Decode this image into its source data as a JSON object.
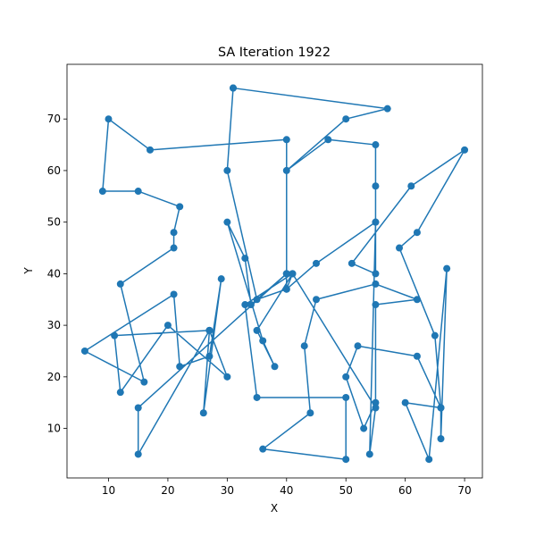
{
  "chart_data": {
    "type": "line",
    "title": "SA Iteration 1922",
    "xlabel": "X",
    "ylabel": "Y",
    "xlim": [
      3,
      73
    ],
    "ylim": [
      0.4,
      80.6
    ],
    "x_ticks": [
      10,
      20,
      30,
      40,
      50,
      60,
      70
    ],
    "y_ticks": [
      10,
      20,
      30,
      40,
      50,
      60,
      70
    ],
    "grid": false,
    "legend": "none",
    "line_color": "#1f77b4",
    "marker": "circle",
    "series": [
      {
        "x": [
          31,
          57,
          50,
          40,
          47,
          55,
          55,
          55,
          55,
          51,
          61,
          70,
          62,
          59,
          65,
          66,
          66,
          67,
          64,
          60,
          66,
          62,
          52,
          50,
          53,
          55,
          55,
          62,
          55,
          45,
          43,
          44,
          36,
          50,
          50,
          35,
          33,
          41,
          40,
          45,
          55,
          54,
          55,
          41,
          35,
          38,
          36,
          30,
          33,
          34,
          40,
          15,
          15,
          27,
          30,
          20,
          12,
          11,
          27,
          26,
          29,
          27,
          22,
          21,
          6,
          16,
          12,
          21,
          21,
          22,
          15,
          9,
          10,
          17,
          40,
          40,
          40,
          35,
          30,
          31
        ],
        "y": [
          76,
          72,
          70,
          60,
          66,
          65,
          57,
          50,
          40,
          42,
          57,
          64,
          48,
          45,
          28,
          14,
          8,
          41,
          4,
          15,
          14,
          24,
          26,
          20,
          10,
          15,
          34,
          35,
          38,
          35,
          26,
          13,
          6,
          4,
          16,
          16,
          34,
          40,
          37,
          42,
          50,
          5,
          14,
          40,
          29,
          22,
          27,
          50,
          43,
          34,
          40,
          14,
          5,
          29,
          20,
          30,
          17,
          28,
          29,
          13,
          39,
          24,
          22,
          36,
          25,
          19,
          38,
          45,
          48,
          53,
          56,
          56,
          70,
          64,
          66,
          40,
          37,
          35,
          60,
          76
        ]
      }
    ]
  }
}
